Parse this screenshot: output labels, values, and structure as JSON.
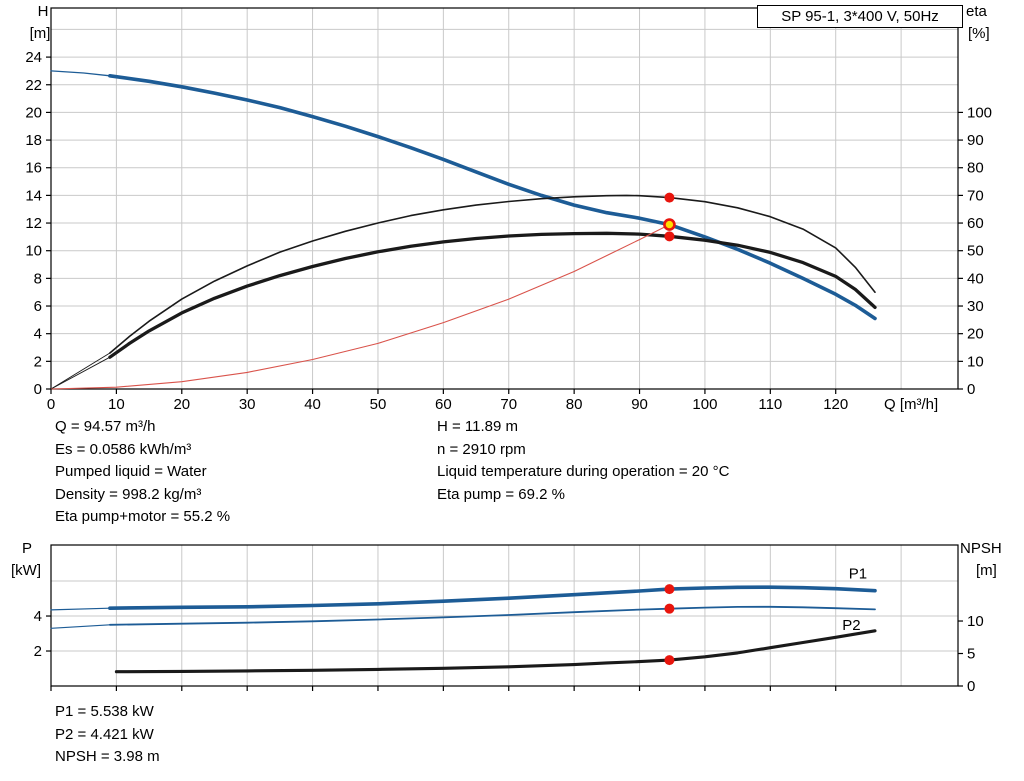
{
  "header": {
    "title_box": "SP 95-1, 3*400 V, 50Hz"
  },
  "top_chart_labels": {
    "y_left_1": "H",
    "y_left_2": "[m]",
    "y_right_1": "eta",
    "y_right_2": "[%]",
    "x_label": "Q [m³/h]"
  },
  "bottom_chart_labels": {
    "y_left_1": "P",
    "y_left_2": "[kW]",
    "y_right_1": "NPSH",
    "y_right_2": "[m]"
  },
  "info_top": {
    "left": [
      "Q = 94.57 m³/h",
      "Es = 0.0586 kWh/m³",
      "Pumped liquid = Water",
      "Density = 998.2 kg/m³",
      "Eta pump+motor = 55.2 %"
    ],
    "right": [
      "H = 11.89 m",
      "n = 2910 rpm",
      "Liquid temperature during operation = 20 °C",
      "Eta pump = 69.2 %"
    ]
  },
  "info_bottom": {
    "lines": [
      "P1 = 5.538 kW",
      "P2 = 4.421 kW",
      "NPSH = 3.98 m"
    ]
  },
  "colors": {
    "curve_blue": "#1d5c96",
    "curve_black": "#1a1a1a",
    "system_red": "#d9534b",
    "marker_red": "#e8150d",
    "duty_yellow": "#ffdf00",
    "axis": "#000000",
    "grid": "#c9c9c9"
  },
  "chart_data": [
    {
      "type": "line",
      "title": "SP 95-1, 3*400 V, 50Hz",
      "xlabel": "Q [m³/h]",
      "ylabel_left": "H [m]",
      "ylabel_right": "eta [%]",
      "xlim": [
        0,
        138.7
      ],
      "ylim_left": [
        0,
        27.55
      ],
      "ylim_right": [
        0,
        137.75
      ],
      "x_ticks": [
        0,
        10,
        20,
        30,
        40,
        50,
        60,
        70,
        80,
        90,
        100,
        110,
        120
      ],
      "x_tick_labels": true,
      "y_ticks_left": [
        0,
        2,
        4,
        6,
        8,
        10,
        12,
        14,
        16,
        18,
        20,
        22,
        24
      ],
      "y_ticks_right": [
        0,
        10,
        20,
        30,
        40,
        50,
        60,
        70,
        80,
        90,
        100
      ],
      "grid_x": [
        10,
        20,
        30,
        40,
        50,
        60,
        70,
        80,
        90,
        100,
        110,
        120,
        130
      ],
      "grid_y_left": [
        2,
        4,
        6,
        8,
        10,
        12,
        14,
        16,
        18,
        20,
        22,
        24,
        26
      ],
      "series": [
        {
          "name": "h-curve-lead",
          "axis": "left",
          "color": "#1d5c96",
          "width": 1.3,
          "points": [
            [
              0,
              23
            ],
            [
              5,
              22.85
            ],
            [
              9,
              22.65
            ]
          ]
        },
        {
          "name": "h-curve",
          "axis": "left",
          "color": "#1d5c96",
          "width": 3.6,
          "points": [
            [
              9,
              22.65
            ],
            [
              15,
              22.25
            ],
            [
              20,
              21.85
            ],
            [
              25,
              21.4
            ],
            [
              30,
              20.9
            ],
            [
              35,
              20.35
            ],
            [
              40,
              19.7
            ],
            [
              45,
              19.0
            ],
            [
              50,
              18.25
            ],
            [
              55,
              17.45
            ],
            [
              60,
              16.6
            ],
            [
              65,
              15.7
            ],
            [
              70,
              14.8
            ],
            [
              75,
              14.0
            ],
            [
              80,
              13.3
            ],
            [
              85,
              12.75
            ],
            [
              90,
              12.35
            ],
            [
              94.57,
              11.89
            ],
            [
              100,
              11.0
            ],
            [
              105,
              10.1
            ],
            [
              110,
              9.1
            ],
            [
              115,
              8.0
            ],
            [
              120,
              6.85
            ],
            [
              123,
              6.05
            ],
            [
              126,
              5.1
            ]
          ]
        },
        {
          "name": "eta-pump-lead",
          "axis": "right",
          "color": "#1a1a1a",
          "width": 0.9,
          "points": [
            [
              0,
              0
            ],
            [
              9,
              13
            ]
          ]
        },
        {
          "name": "eta-pump-curve",
          "axis": "right",
          "color": "#1a1a1a",
          "width": 1.6,
          "points": [
            [
              9,
              13
            ],
            [
              12,
              19
            ],
            [
              15,
              24.5
            ],
            [
              20,
              32.5
            ],
            [
              25,
              39
            ],
            [
              30,
              44.5
            ],
            [
              35,
              49.5
            ],
            [
              40,
              53.5
            ],
            [
              45,
              57
            ],
            [
              50,
              60
            ],
            [
              55,
              62.7
            ],
            [
              60,
              64.8
            ],
            [
              65,
              66.5
            ],
            [
              70,
              67.8
            ],
            [
              75,
              68.8
            ],
            [
              80,
              69.5
            ],
            [
              85,
              69.9
            ],
            [
              88,
              70
            ],
            [
              90,
              69.9
            ],
            [
              94.57,
              69.2
            ],
            [
              100,
              67.7
            ],
            [
              105,
              65.5
            ],
            [
              110,
              62.3
            ],
            [
              115,
              57.8
            ],
            [
              120,
              51
            ],
            [
              123,
              44
            ],
            [
              126,
              35
            ]
          ]
        },
        {
          "name": "eta-pump-motor-lead",
          "axis": "right",
          "color": "#1a1a1a",
          "width": 0.9,
          "points": [
            [
              0,
              0
            ],
            [
              9,
              11.5
            ]
          ]
        },
        {
          "name": "eta-pump-motor-curve",
          "axis": "right",
          "color": "#1a1a1a",
          "width": 3.3,
          "points": [
            [
              9,
              11.5
            ],
            [
              12,
              16.5
            ],
            [
              15,
              21
            ],
            [
              20,
              27.5
            ],
            [
              25,
              32.8
            ],
            [
              30,
              37.2
            ],
            [
              35,
              41
            ],
            [
              40,
              44.3
            ],
            [
              45,
              47.2
            ],
            [
              50,
              49.6
            ],
            [
              55,
              51.6
            ],
            [
              60,
              53.2
            ],
            [
              65,
              54.4
            ],
            [
              70,
              55.3
            ],
            [
              75,
              55.9
            ],
            [
              80,
              56.2
            ],
            [
              85,
              56.3
            ],
            [
              90,
              56.0
            ],
            [
              94.57,
              55.2
            ],
            [
              100,
              53.8
            ],
            [
              105,
              52
            ],
            [
              110,
              49.4
            ],
            [
              115,
              45.7
            ],
            [
              120,
              40.7
            ],
            [
              123,
              36
            ],
            [
              126,
              29.5
            ]
          ]
        },
        {
          "name": "system-curve",
          "axis": "left",
          "color": "#d9534b",
          "width": 1.1,
          "points": [
            [
              0,
              0
            ],
            [
              10,
              0.13
            ],
            [
              20,
              0.53
            ],
            [
              30,
              1.2
            ],
            [
              40,
              2.13
            ],
            [
              50,
              3.3
            ],
            [
              60,
              4.8
            ],
            [
              70,
              6.5
            ],
            [
              80,
              8.5
            ],
            [
              90,
              10.8
            ],
            [
              94.57,
              11.89
            ]
          ]
        }
      ],
      "markers": [
        {
          "name": "eta-pump-operating-marker",
          "x": 94.57,
          "y": 69.2,
          "axis": "right",
          "r": 5,
          "fill": "#e8150d"
        },
        {
          "name": "eta-pump-motor-operating-marker",
          "x": 94.57,
          "y": 55.2,
          "axis": "right",
          "r": 5,
          "fill": "#e8150d"
        },
        {
          "name": "duty-point-marker",
          "x": 94.57,
          "y": 11.89,
          "axis": "left",
          "r": 5,
          "fill": "#ffdf00",
          "stroke": "#e8150d",
          "stroke_width": 2.6
        }
      ],
      "labels": []
    },
    {
      "type": "line",
      "title": "",
      "xlabel": "",
      "ylabel_left": "P [kW]",
      "ylabel_right": "NPSH [m]",
      "xlim": [
        0,
        138.7
      ],
      "ylim_left": [
        0,
        8.06
      ],
      "ylim_right": [
        0,
        21.7
      ],
      "x_ticks": [
        0,
        10,
        20,
        30,
        40,
        50,
        60,
        70,
        80,
        90,
        100,
        110,
        120
      ],
      "x_tick_labels": false,
      "y_ticks_left": [
        2,
        4
      ],
      "y_ticks_right": [
        0,
        5,
        10
      ],
      "grid_x": [
        10,
        20,
        30,
        40,
        50,
        60,
        70,
        80,
        90,
        100,
        110,
        120,
        130
      ],
      "grid_y_left": [
        2,
        4,
        6
      ],
      "series": [
        {
          "name": "p1-lead",
          "axis": "left",
          "color": "#1d5c96",
          "width": 1.2,
          "points": [
            [
              0,
              4.35
            ],
            [
              9,
              4.45
            ]
          ]
        },
        {
          "name": "p1-curve",
          "axis": "left",
          "color": "#1d5c96",
          "width": 3.6,
          "points": [
            [
              9,
              4.45
            ],
            [
              20,
              4.5
            ],
            [
              30,
              4.53
            ],
            [
              40,
              4.6
            ],
            [
              50,
              4.7
            ],
            [
              60,
              4.85
            ],
            [
              70,
              5.02
            ],
            [
              80,
              5.22
            ],
            [
              90,
              5.43
            ],
            [
              94.57,
              5.538
            ],
            [
              100,
              5.6
            ],
            [
              105,
              5.64
            ],
            [
              110,
              5.65
            ],
            [
              115,
              5.62
            ],
            [
              120,
              5.56
            ],
            [
              126,
              5.45
            ]
          ]
        },
        {
          "name": "p2-lead",
          "axis": "left",
          "color": "#1d5c96",
          "width": 1.2,
          "points": [
            [
              0,
              3.3
            ],
            [
              9,
              3.5
            ]
          ]
        },
        {
          "name": "p2-curve",
          "axis": "left",
          "color": "#1d5c96",
          "width": 1.8,
          "points": [
            [
              9,
              3.5
            ],
            [
              20,
              3.56
            ],
            [
              30,
              3.62
            ],
            [
              40,
              3.7
            ],
            [
              50,
              3.8
            ],
            [
              60,
              3.92
            ],
            [
              70,
              4.06
            ],
            [
              80,
              4.22
            ],
            [
              90,
              4.37
            ],
            [
              94.57,
              4.421
            ],
            [
              100,
              4.48
            ],
            [
              105,
              4.52
            ],
            [
              110,
              4.53
            ],
            [
              115,
              4.5
            ],
            [
              120,
              4.45
            ],
            [
              126,
              4.38
            ]
          ]
        },
        {
          "name": "npsh-curve",
          "axis": "right",
          "color": "#1a1a1a",
          "width": 3.1,
          "points": [
            [
              10,
              2.2
            ],
            [
              20,
              2.25
            ],
            [
              30,
              2.32
            ],
            [
              40,
              2.42
            ],
            [
              50,
              2.55
            ],
            [
              60,
              2.72
            ],
            [
              70,
              2.95
            ],
            [
              80,
              3.3
            ],
            [
              85,
              3.55
            ],
            [
              90,
              3.75
            ],
            [
              94.57,
              3.98
            ],
            [
              100,
              4.5
            ],
            [
              105,
              5.1
            ],
            [
              110,
              5.9
            ],
            [
              115,
              6.7
            ],
            [
              120,
              7.5
            ],
            [
              126,
              8.5
            ]
          ]
        }
      ],
      "markers": [
        {
          "name": "p1-operating-marker",
          "x": 94.57,
          "y": 5.538,
          "axis": "left",
          "r": 5,
          "fill": "#e8150d"
        },
        {
          "name": "p2-operating-marker",
          "x": 94.57,
          "y": 4.421,
          "axis": "left",
          "r": 5,
          "fill": "#e8150d"
        },
        {
          "name": "npsh-operating-marker",
          "x": 94.57,
          "y": 3.98,
          "axis": "right",
          "r": 5,
          "fill": "#e8150d"
        }
      ],
      "labels": [
        {
          "name": "p1-curve-label",
          "text": "P1",
          "x": 122,
          "y": 6.15,
          "axis": "left",
          "color": "#1d5c96"
        },
        {
          "name": "p2-curve-label",
          "text": "P2",
          "x": 121,
          "y": 3.2,
          "axis": "left",
          "color": "#1d5c96"
        }
      ]
    }
  ]
}
